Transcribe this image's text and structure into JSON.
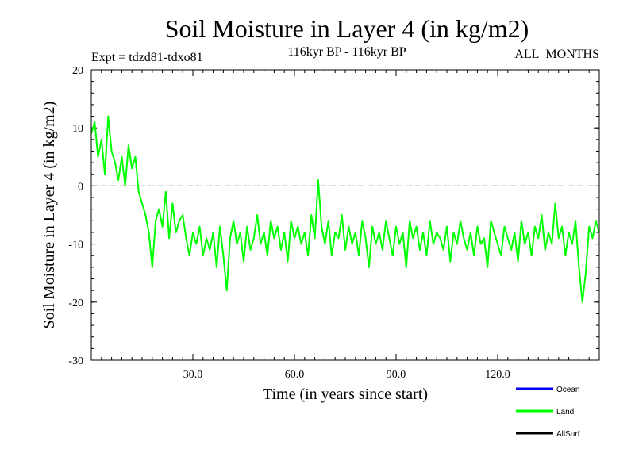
{
  "chart_data": {
    "type": "line",
    "title": "Soil Moisture in Layer 4 (in kg/m2)",
    "subtitle": "116kyr BP - 116kyr BP",
    "experiment": "Expt = tdzd81-tdxo81",
    "period": "ALL_MONTHS",
    "xlabel": "Time (in years since start)",
    "ylabel": "Soil Moisture in Layer 4 (in kg/m2)",
    "xlim": [
      0,
      150
    ],
    "ylim": [
      -30,
      20
    ],
    "x_ticks": [
      30,
      60,
      90,
      120
    ],
    "x_tick_labels": [
      "30.0",
      "60.0",
      "90.0",
      "120.0"
    ],
    "y_ticks": [
      -30,
      -20,
      -10,
      0,
      10,
      20
    ],
    "y_tick_labels": [
      "-30",
      "-20",
      "-10",
      "0",
      "10",
      "20"
    ],
    "reference_line": {
      "y": 0,
      "style": "dashed"
    },
    "series": [
      {
        "name": "Land",
        "color": "#00ff00",
        "x": [
          0,
          1,
          2,
          3,
          4,
          5,
          6,
          7,
          8,
          9,
          10,
          11,
          12,
          13,
          14,
          15,
          16,
          17,
          18,
          19,
          20,
          21,
          22,
          23,
          24,
          25,
          26,
          27,
          28,
          29,
          30,
          31,
          32,
          33,
          34,
          35,
          36,
          37,
          38,
          39,
          40,
          41,
          42,
          43,
          44,
          45,
          46,
          47,
          48,
          49,
          50,
          51,
          52,
          53,
          54,
          55,
          56,
          57,
          58,
          59,
          60,
          61,
          62,
          63,
          64,
          65,
          66,
          67,
          68,
          69,
          70,
          71,
          72,
          73,
          74,
          75,
          76,
          77,
          78,
          79,
          80,
          81,
          82,
          83,
          84,
          85,
          86,
          87,
          88,
          89,
          90,
          91,
          92,
          93,
          94,
          95,
          96,
          97,
          98,
          99,
          100,
          101,
          102,
          103,
          104,
          105,
          106,
          107,
          108,
          109,
          110,
          111,
          112,
          113,
          114,
          115,
          116,
          117,
          118,
          119,
          120,
          121,
          122,
          123,
          124,
          125,
          126,
          127,
          128,
          129,
          130,
          131,
          132,
          133,
          134,
          135,
          136,
          137,
          138,
          139,
          140,
          141,
          142,
          143,
          144,
          145,
          146,
          147,
          148,
          149,
          150
        ],
        "values": [
          9,
          11,
          5,
          8,
          2,
          12,
          6,
          4,
          1,
          5,
          0,
          7,
          3,
          5,
          -1,
          -3,
          -5,
          -8,
          -14,
          -6,
          -4,
          -7,
          -1,
          -9,
          -3,
          -8,
          -6,
          -5,
          -9,
          -12,
          -8,
          -10,
          -7,
          -12,
          -9,
          -11,
          -8,
          -14,
          -7,
          -12,
          -18,
          -9,
          -6,
          -10,
          -8,
          -13,
          -7,
          -11,
          -9,
          -5,
          -10,
          -8,
          -12,
          -6,
          -9,
          -7,
          -11,
          -8,
          -13,
          -6,
          -9,
          -7,
          -10,
          -8,
          -12,
          -5,
          -9,
          1,
          -7,
          -10,
          -6,
          -12,
          -8,
          -9,
          -5,
          -11,
          -7,
          -10,
          -8,
          -12,
          -6,
          -9,
          -14,
          -7,
          -10,
          -8,
          -11,
          -6,
          -9,
          -12,
          -7,
          -10,
          -8,
          -14,
          -6,
          -9,
          -7,
          -11,
          -8,
          -12,
          -6,
          -10,
          -8,
          -9,
          -11,
          -7,
          -13,
          -8,
          -10,
          -6,
          -9,
          -11,
          -8,
          -12,
          -7,
          -10,
          -9,
          -14,
          -6,
          -8,
          -10,
          -12,
          -7,
          -9,
          -11,
          -8,
          -13,
          -6,
          -10,
          -8,
          -12,
          -7,
          -9,
          -5,
          -11,
          -8,
          -10,
          -3,
          -9,
          -7,
          -12,
          -8,
          -10,
          -6,
          -14,
          -20,
          -15,
          -7,
          -9,
          -6,
          -8
        ]
      }
    ],
    "legend": {
      "placement": "bottom-right",
      "entries": [
        {
          "label": "Ocean",
          "color": "#0000ff"
        },
        {
          "label": "Land",
          "color": "#00ff00"
        },
        {
          "label": "AllSurf",
          "color": "#000000"
        }
      ]
    }
  }
}
